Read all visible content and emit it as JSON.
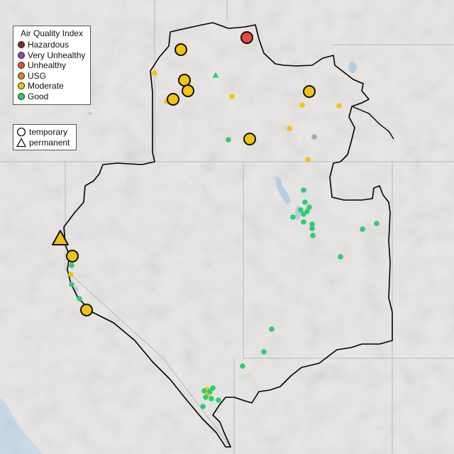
{
  "legend": {
    "title": "Air Quality Index",
    "categories": [
      {
        "key": "hazardous",
        "label": "Hazardous",
        "color": "#7a2a2a"
      },
      {
        "key": "very_unhealthy",
        "label": "Very Unhealthy",
        "color": "#8e44ad"
      },
      {
        "key": "unhealthy",
        "label": "Unhealthy",
        "color": "#e74c3c"
      },
      {
        "key": "usg",
        "label": "USG",
        "color": "#e67e22"
      },
      {
        "key": "moderate",
        "label": "Moderate",
        "color": "#f1c40f"
      },
      {
        "key": "good",
        "label": "Good",
        "color": "#2ecc71"
      }
    ]
  },
  "monitor_types": {
    "temporary": {
      "label": "temporary",
      "icon": "circle-icon"
    },
    "permanent": {
      "label": "permanent",
      "icon": "triangle-icon"
    }
  },
  "colors": {
    "land": "#e8e6e4",
    "water": "#b7cde0",
    "ocean": "#c8dbe9",
    "boundary": "#000000",
    "state_lines": "#b9b9b9"
  }
}
